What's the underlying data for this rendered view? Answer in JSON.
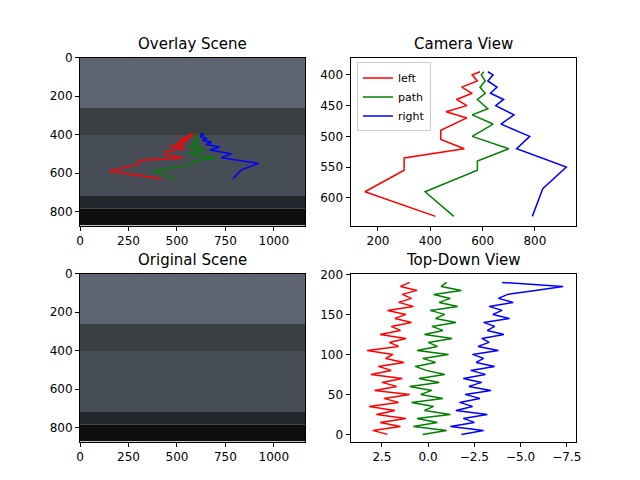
{
  "chart_data": [
    {
      "type": "overlay",
      "title": "Overlay Scene",
      "xlim": [
        -0.5,
        1163.5
      ],
      "ylim": [
        873.5,
        -0.5
      ],
      "xticks": [
        0,
        250,
        500,
        750,
        1000
      ],
      "yticks": [
        0,
        200,
        400,
        600,
        800
      ],
      "series": [
        {
          "name": "left",
          "color": "red",
          "x": [
            420,
            150,
            300,
            300,
            530,
            440,
            440,
            540,
            460,
            540,
            500,
            560,
            520,
            580,
            560,
            590
          ],
          "values": [
            630,
            590,
            555,
            535,
            520,
            505,
            490,
            470,
            460,
            450,
            440,
            430,
            420,
            410,
            400,
            395
          ]
        },
        {
          "name": "path",
          "color": "green",
          "x": [
            490,
            380,
            580,
            580,
            700,
            560,
            640,
            560,
            620,
            580,
            610,
            590,
            610,
            595,
            605
          ],
          "values": [
            630,
            590,
            555,
            540,
            520,
            500,
            480,
            465,
            455,
            440,
            430,
            420,
            410,
            400,
            395
          ]
        },
        {
          "name": "right",
          "color": "blue",
          "x": [
            790,
            830,
            920,
            730,
            780,
            670,
            720,
            650,
            680,
            630,
            655,
            620,
            640,
            620
          ],
          "values": [
            630,
            585,
            550,
            520,
            500,
            480,
            465,
            450,
            440,
            430,
            420,
            410,
            400,
            395
          ]
        }
      ]
    },
    {
      "type": "line",
      "title": "Camera View",
      "legend": "upper left",
      "xlim": [
        95,
        957
      ],
      "ylim": [
        645,
        372
      ],
      "xticks": [
        200,
        400,
        600,
        800
      ],
      "yticks": [
        400,
        450,
        500,
        550,
        600
      ],
      "series": [
        {
          "name": "left",
          "color": "red",
          "x": [
            420,
            150,
            300,
            300,
            530,
            440,
            440,
            540,
            460,
            540,
            500,
            560,
            520,
            580,
            560,
            590
          ],
          "values": [
            630,
            590,
            555,
            535,
            520,
            505,
            490,
            470,
            460,
            450,
            440,
            430,
            420,
            410,
            400,
            395
          ]
        },
        {
          "name": "path",
          "color": "green",
          "x": [
            490,
            380,
            580,
            580,
            700,
            560,
            640,
            560,
            620,
            580,
            610,
            590,
            610,
            595,
            605
          ],
          "values": [
            630,
            590,
            555,
            540,
            520,
            500,
            480,
            465,
            455,
            440,
            430,
            420,
            410,
            400,
            395
          ]
        },
        {
          "name": "right",
          "color": "blue",
          "x": [
            790,
            830,
            920,
            730,
            780,
            670,
            720,
            650,
            680,
            630,
            655,
            620,
            640,
            620
          ],
          "values": [
            630,
            585,
            550,
            520,
            500,
            480,
            465,
            450,
            440,
            430,
            420,
            410,
            400,
            395
          ]
        }
      ]
    },
    {
      "type": "image",
      "title": "Original Scene",
      "xlim": [
        -0.5,
        1163.5
      ],
      "ylim": [
        873.5,
        -0.5
      ],
      "xticks": [
        0,
        250,
        500,
        750,
        1000
      ],
      "yticks": [
        0,
        200,
        400,
        600,
        800
      ]
    },
    {
      "type": "line",
      "title": "Top-Down View",
      "xlim": [
        4.2,
        -8.0
      ],
      "ylim": [
        -9,
        201
      ],
      "xticks": [
        2.5,
        {
          "value": 0,
          "label": "0.0"
        },
        {
          "value": -2.5,
          "label": "−2.5"
        },
        {
          "value": -5,
          "label": "−5.0"
        },
        {
          "value": -7.5,
          "label": "−7.5"
        }
      ],
      "yticks": [
        0,
        50,
        100,
        150,
        200
      ],
      "series": [
        {
          "name": "left",
          "color": "red",
          "x": [
            2.2,
            3.0,
            1.5,
            2.6,
            1.2,
            2.8,
            1.8,
            3.2,
            1.6,
            2.4,
            1.0,
            2.9,
            1.7,
            2.5,
            1.4,
            3.1,
            2.0,
            2.7,
            1.3,
            2.3,
            1.9,
            3.3,
            1.6,
            2.1,
            1.2,
            2.6,
            1.5,
            2.0,
            0.9,
            1.8,
            1.2,
            2.2,
            0.8,
            1.6,
            0.9,
            1.4,
            0.6,
            1.5,
            1.0
          ],
          "values": [
            0,
            5,
            10,
            15,
            20,
            25,
            30,
            35,
            40,
            45,
            50,
            55,
            60,
            65,
            70,
            75,
            80,
            85,
            90,
            95,
            100,
            105,
            110,
            115,
            120,
            125,
            130,
            135,
            140,
            145,
            150,
            155,
            160,
            165,
            170,
            175,
            180,
            185,
            190
          ]
        },
        {
          "name": "path",
          "color": "green",
          "x": [
            0.3,
            -1.0,
            0.8,
            -0.5,
            0.6,
            -1.2,
            0.2,
            -0.3,
            0.9,
            -0.8,
            0.4,
            -0.2,
            1.0,
            -0.6,
            0.5,
            -0.9,
            0.1,
            0.7,
            -0.4,
            0.3,
            -1.1,
            0.6,
            -0.5,
            0.0,
            -1.3,
            0.2,
            -0.8,
            -0.2,
            -1.5,
            -0.4,
            -0.9,
            -0.1,
            -1.6,
            -0.6,
            -1.2,
            -0.3,
            -1.8,
            -0.7,
            -1.0
          ],
          "values": [
            0,
            5,
            10,
            15,
            20,
            25,
            30,
            35,
            40,
            45,
            50,
            55,
            60,
            65,
            70,
            75,
            80,
            85,
            90,
            95,
            100,
            105,
            110,
            115,
            120,
            125,
            130,
            135,
            140,
            145,
            150,
            155,
            160,
            165,
            170,
            175,
            180,
            185,
            190
          ]
        },
        {
          "name": "right",
          "color": "blue",
          "x": [
            -1.8,
            -3.0,
            -1.2,
            -2.5,
            -1.9,
            -3.2,
            -1.5,
            -2.4,
            -1.7,
            -2.8,
            -2.0,
            -3.4,
            -2.2,
            -2.9,
            -1.9,
            -3.1,
            -2.3,
            -3.6,
            -2.6,
            -3.0,
            -2.4,
            -3.8,
            -2.7,
            -3.3,
            -2.9,
            -4.1,
            -3.2,
            -3.6,
            -3.0,
            -4.4,
            -3.5,
            -4.0,
            -3.3,
            -4.6,
            -3.8,
            -4.3,
            -5.8,
            -7.3,
            -4.0
          ],
          "values": [
            0,
            5,
            10,
            15,
            20,
            25,
            30,
            35,
            40,
            45,
            50,
            55,
            60,
            65,
            70,
            75,
            80,
            85,
            90,
            95,
            100,
            105,
            110,
            115,
            120,
            125,
            130,
            135,
            140,
            145,
            150,
            155,
            160,
            165,
            170,
            175,
            180,
            185,
            190
          ]
        }
      ]
    }
  ]
}
